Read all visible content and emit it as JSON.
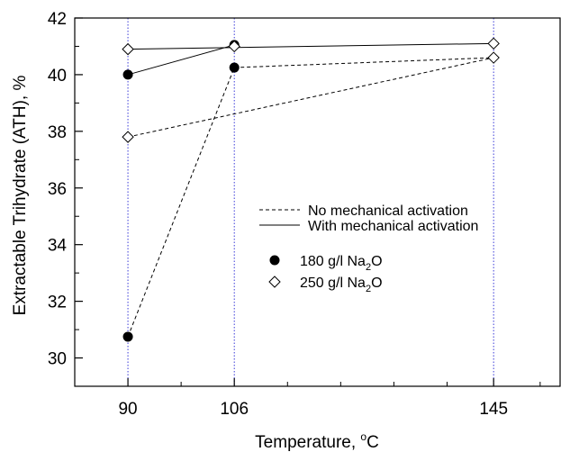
{
  "chart_data": {
    "type": "line",
    "xlabel_prefix": "Temperature, ",
    "xlabel_degree": "o",
    "xlabel_unit": "C",
    "ylabel": "Extractable Trihydrate (ATH), %",
    "xlim": [
      82,
      155
    ],
    "ylim": [
      29,
      42
    ],
    "x_ticks": [
      90,
      106,
      145
    ],
    "x_minor_ticks": [
      98,
      114,
      122,
      130,
      138,
      152
    ],
    "y_ticks": [
      30,
      32,
      34,
      36,
      38,
      40,
      42
    ],
    "grid": "vertical dotted blue lines at 90, 106 and 145",
    "legend_position": "center-right",
    "legend": {
      "lines": [
        {
          "label": "No mechanical activation",
          "style": "dashed"
        },
        {
          "label": "With mechanical activation",
          "style": "solid"
        }
      ],
      "markers": [
        {
          "label_prefix": "180 g/l Na",
          "sub": "2",
          "label_suffix": "O",
          "marker": "filled-circle"
        },
        {
          "label_prefix": "250 g/l Na",
          "sub": "2",
          "label_suffix": "O",
          "marker": "open-diamond"
        }
      ]
    },
    "series": [
      {
        "concentration": "180 g/l Na2O",
        "activation": "none",
        "line": "dashed",
        "marker": "filled-circle",
        "x": [
          90,
          106
        ],
        "y": [
          30.75,
          40.25
        ]
      },
      {
        "concentration": "180 g/l Na2O",
        "activation": "with",
        "line": "solid",
        "marker": "filled-circle",
        "x": [
          90,
          106
        ],
        "y": [
          40.0,
          41.05
        ]
      },
      {
        "concentration": "250 g/l Na2O",
        "activation": "none",
        "line": "dashed",
        "marker": "open-diamond",
        "x": [
          90,
          145
        ],
        "y": [
          37.8,
          40.6
        ]
      },
      {
        "concentration": "250 g/l Na2O",
        "activation": "with",
        "line": "solid",
        "marker": "open-diamond",
        "x": [
          90,
          145
        ],
        "y": [
          40.9,
          41.1
        ]
      },
      {
        "concentration": "250 g/l Na2O",
        "activation": "with",
        "line": "solid",
        "marker": "open-diamond",
        "x": [
          106
        ],
        "y": [
          41.0
        ]
      },
      {
        "concentration": "180 g/l Na2O",
        "activation": "none",
        "line": "dashed",
        "marker": "none",
        "x": [
          106,
          145
        ],
        "y": [
          40.25,
          40.6
        ]
      }
    ]
  }
}
